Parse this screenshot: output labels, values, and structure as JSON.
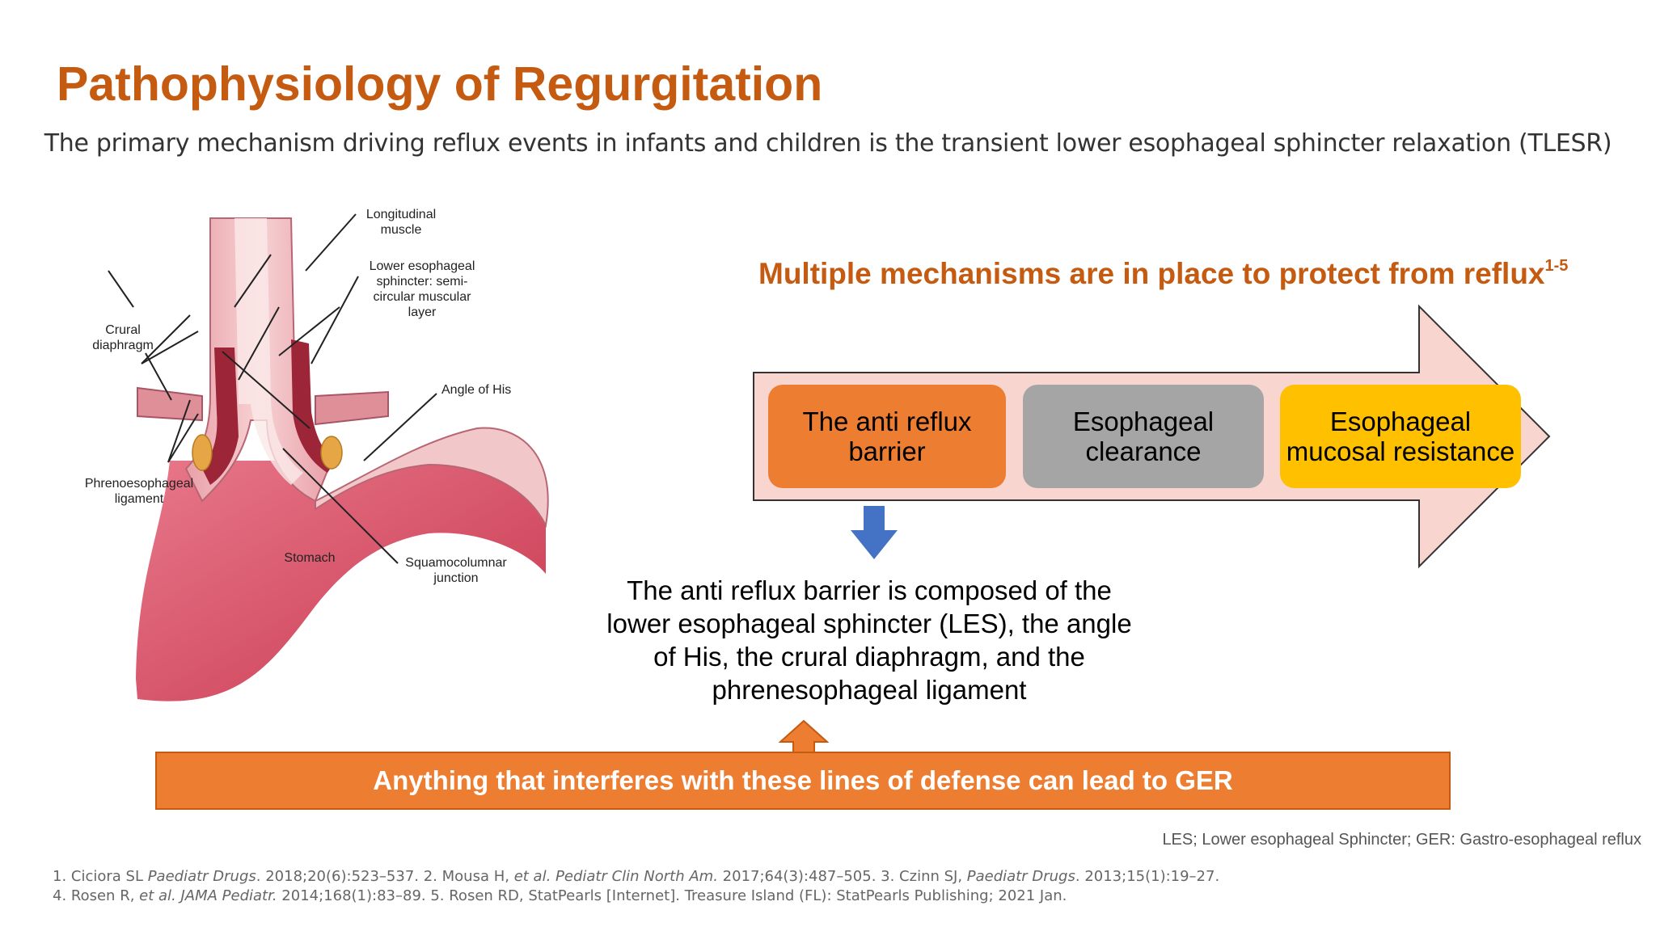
{
  "header": {
    "title": "Pathophysiology of Regurgitation",
    "subtitle": "The primary mechanism driving reflux events in infants and children is the transient lower esophageal sphincter relaxation (TLESR)"
  },
  "anatomy": {
    "labels": {
      "longitudinal_1": "Longitudinal",
      "longitudinal_2": "muscle",
      "les_1": "Lower esophageal",
      "les_2": "sphincter: semi-",
      "les_3": "circular muscular",
      "les_4": "layer",
      "crural_1": "Crural",
      "crural_2": "diaphragm",
      "angle": "Angle of His",
      "phreno_1": "Phrenoesophageal",
      "phreno_2": "ligament",
      "stomach": "Stomach",
      "squamo_1": "Squamocolumnar",
      "squamo_2": "junction"
    }
  },
  "mechanisms": {
    "heading": "Multiple mechanisms are in place to protect from reflux",
    "heading_sup": "1-5",
    "boxes": [
      {
        "label": "The anti reflux barrier",
        "color": "#ed7d31"
      },
      {
        "label": "Esophageal clearance",
        "color": "#a5a5a5"
      },
      {
        "label": "Esophageal mucosal resistance",
        "color": "#ffc000"
      }
    ],
    "arrow_color": "#f8d5cf"
  },
  "explanation": "The anti reflux barrier is composed of the lower esophageal sphincter (LES), the angle of His, the crural diaphragm, and the phrenesophageal ligament",
  "banner": "Anything that interferes with these lines of defense can lead to GER",
  "abbreviations": "LES; Lower esophageal Sphincter; GER: Gastro-esophageal reflux",
  "references": {
    "r1_a": "1. Ciciora SL ",
    "r1_b": "Paediatr Drugs",
    "r1_c": ". 2018;20(6):523–537. 2. Mousa H, ",
    "r1_d": "et al.",
    "r1_e": "  ",
    "r1_f": "Pediatr Clin North Am.",
    "r1_g": " 2017;64(3):487–505. 3. Czinn SJ, ",
    "r1_h": "Paediatr Drugs",
    "r1_i": ". 2013;15(1):19–27.",
    "r2_a": "4. Rosen R, ",
    "r2_b": "et al. JAMA Pediatr.",
    "r2_c": " 2014;168(1):83–89. 5. Rosen RD, StatPearls [Internet]. Treasure Island (FL): StatPearls Publishing; 2021 Jan."
  }
}
